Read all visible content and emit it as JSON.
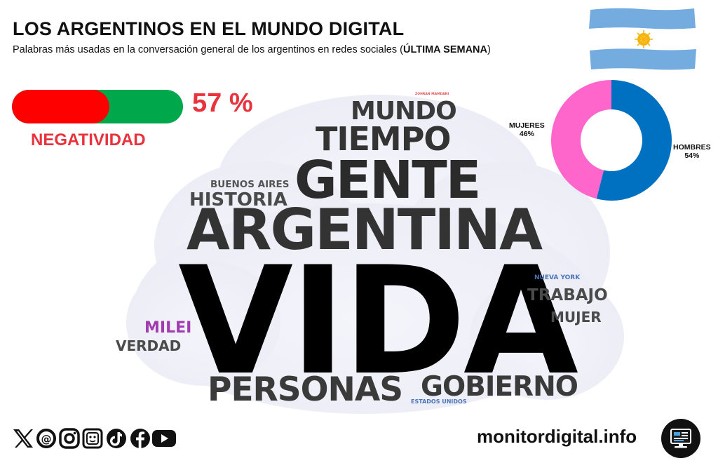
{
  "header": {
    "title": "LOS ARGENTINOS EN EL MUNDO DIGITAL",
    "subtitle_prefix": "Palabras más usadas en la conversación general de los argentinos en redes sociales (",
    "subtitle_bold": "ÚLTIMA SEMANA",
    "subtitle_suffix": ")"
  },
  "negativity": {
    "percent_text": "57 %",
    "value": 0.57,
    "label": "NEGATIVIDAD",
    "colors": {
      "fill": "#ff0000",
      "track": "#00a84c",
      "text": "#e8323c"
    }
  },
  "wordcloud": {
    "words": [
      {
        "text": "VIDA",
        "color": "#000000"
      },
      {
        "text": "ARGENTINA",
        "color": "#333333"
      },
      {
        "text": "GENTE",
        "color": "#2b2b2b"
      },
      {
        "text": "TIEMPO",
        "color": "#333333"
      },
      {
        "text": "MUNDO",
        "color": "#3a3a3a"
      },
      {
        "text": "PERSONAS",
        "color": "#3a3a3a"
      },
      {
        "text": "GOBIERNO",
        "color": "#3a3a3a"
      },
      {
        "text": "HISTORIA",
        "color": "#4a4a4a"
      },
      {
        "text": "BUENOS AIRES",
        "color": "#555555"
      },
      {
        "text": "TRABAJO",
        "color": "#4a4a4a"
      },
      {
        "text": "MUJER",
        "color": "#4a4a4a"
      },
      {
        "text": "MILEI",
        "color": "#a13cb0"
      },
      {
        "text": "VERDAD",
        "color": "#4a4a4a"
      },
      {
        "text": "NUEVA YORK",
        "color": "#4a74b8"
      },
      {
        "text": "ESTADOS UNIDOS",
        "color": "#4a74b8"
      },
      {
        "text": "ZOHRAN MAMDANI",
        "color": "#e05050"
      }
    ]
  },
  "gender": {
    "women": {
      "label": "MUJERES",
      "percent_text": "46%",
      "value": 46,
      "color": "#ff66cc"
    },
    "men": {
      "label": "HOMBRES",
      "percent_text": "54%",
      "value": 54,
      "color": "#0070c0"
    }
  },
  "footer": {
    "site": "monitordigital.info",
    "social_icons": [
      "x-icon",
      "threads-icon",
      "instagram-icon",
      "grok-icon",
      "tiktok-icon",
      "facebook-icon",
      "youtube-icon"
    ],
    "logo_icon": "monitor-logo-icon"
  },
  "flag": {
    "colors": {
      "blue": "#74acdf",
      "white": "#ffffff",
      "sun": "#f6b40e"
    }
  }
}
